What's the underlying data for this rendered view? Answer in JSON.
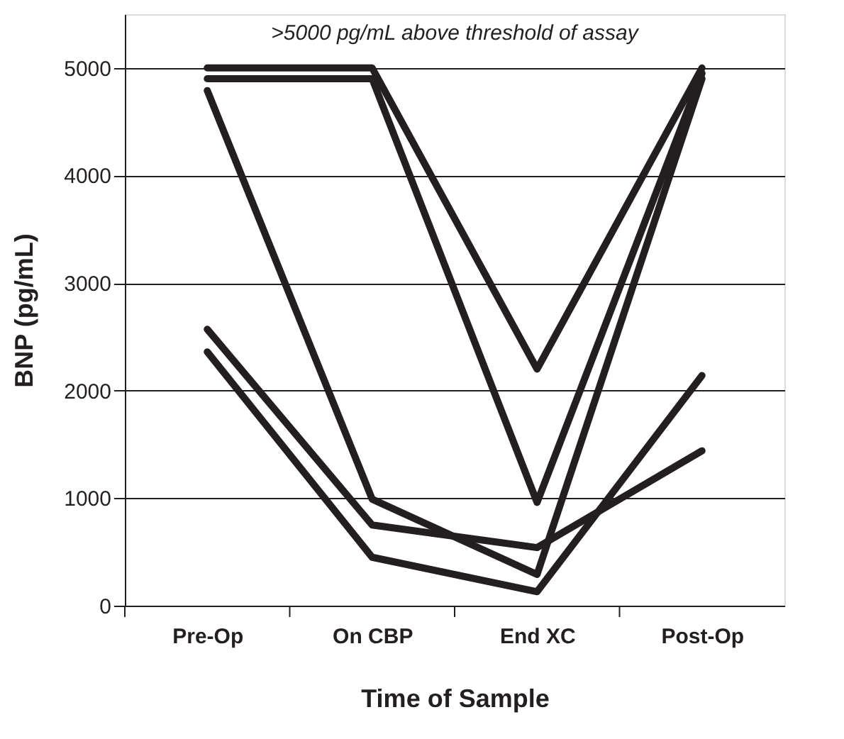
{
  "chart_data": {
    "type": "line",
    "xlabel": "Time of Sample",
    "ylabel": "BNP (pg/mL)",
    "categories": [
      "Pre-Op",
      "On CBP",
      "End XC",
      "Post-Op"
    ],
    "series": [
      {
        "color": "#231f20",
        "values": [
          5000,
          5000,
          2200,
          5000
        ]
      },
      {
        "color": "#231f20",
        "values": [
          4900,
          4900,
          960,
          4950
        ]
      },
      {
        "color": "#231f20",
        "values": [
          4790,
          990,
          290,
          4900
        ]
      },
      {
        "color": "#231f20",
        "values": [
          2570,
          750,
          540,
          1440
        ]
      },
      {
        "color": "#231f20",
        "values": [
          2360,
          450,
          130,
          2140
        ]
      }
    ],
    "ylim": [
      0,
      5500
    ],
    "yticks": [
      0,
      1000,
      2000,
      3000,
      4000,
      5000
    ],
    "grid": "y",
    "legend": false,
    "marker": "none",
    "line_style": "solid",
    "annotations": [
      ">5000 pg/mL above threshold of assay"
    ]
  }
}
